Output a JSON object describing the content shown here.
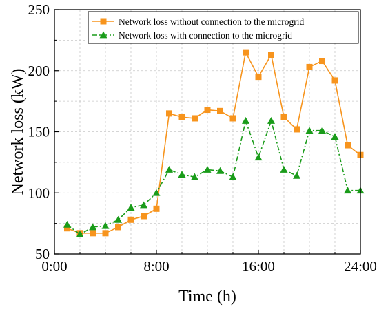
{
  "chart_data": {
    "type": "line",
    "xlabel": "Time (h)",
    "ylabel": "Network loss (kW)",
    "xlim": [
      0,
      24
    ],
    "ylim": [
      50,
      250
    ],
    "x_ticks": [
      0,
      8,
      16,
      24
    ],
    "x_tick_labels": [
      "0:00",
      "8:00",
      "16:00",
      "24:00"
    ],
    "y_ticks": [
      50,
      100,
      150,
      200,
      250
    ],
    "y_tick_labels": [
      "50",
      "100",
      "150",
      "200",
      "250"
    ],
    "grid": true,
    "legend_position": "top-right",
    "x": [
      1,
      2,
      3,
      4,
      5,
      6,
      7,
      8,
      9,
      10,
      11,
      12,
      13,
      14,
      15,
      16,
      17,
      18,
      19,
      20,
      21,
      22,
      23,
      24
    ],
    "series": [
      {
        "name": "Network loss without connection to the microgrid",
        "color": "#f7941d",
        "marker": "square",
        "line_style": "solid",
        "values": [
          71,
          67,
          67,
          67,
          72,
          78,
          81,
          87,
          165,
          162,
          161,
          168,
          167,
          161,
          215,
          195,
          213,
          162,
          152,
          203,
          208,
          192,
          139,
          131
        ]
      },
      {
        "name": "Network loss with connection to the microgrid",
        "color": "#1a9c1a",
        "marker": "triangle",
        "line_style": "dashdot",
        "values": [
          74,
          66,
          72,
          73,
          78,
          88,
          90,
          100,
          119,
          115,
          113,
          119,
          118,
          113,
          159,
          129,
          159,
          119,
          114,
          151,
          151,
          146,
          102,
          102
        ]
      }
    ]
  }
}
